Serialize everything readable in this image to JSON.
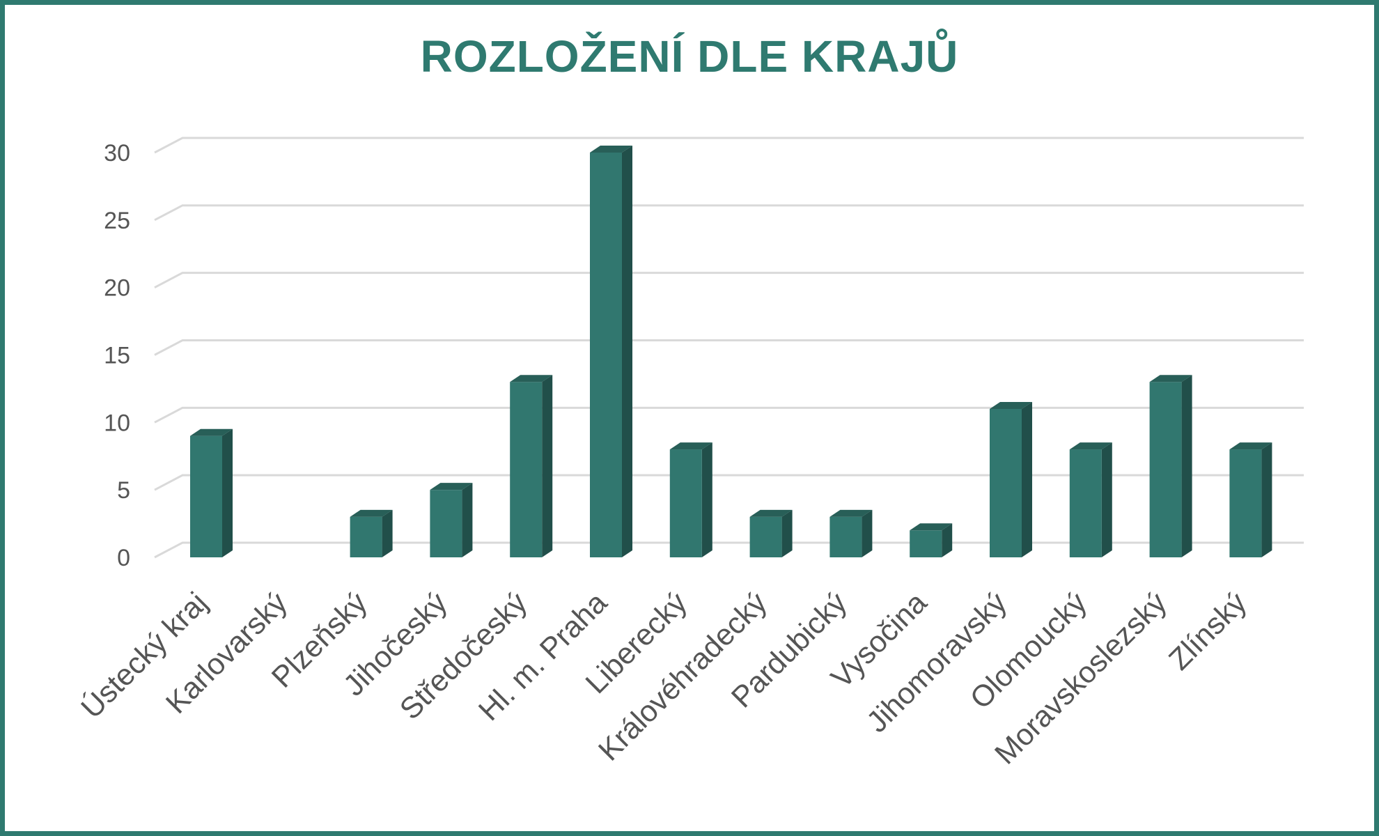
{
  "chart_data": {
    "type": "bar",
    "title": "ROZLOŽENÍ DLE KRAJŮ",
    "xlabel": "",
    "ylabel": "",
    "categories": [
      "Ústecký kraj",
      "Karlovarský",
      "Plzeňský",
      "Jihočeský",
      "Středočeský",
      "Hl. m. Praha",
      "Liberecký",
      "Královéhradecký",
      "Pardubický",
      "Vysočina",
      "Jihomoravský",
      "Olomoucký",
      "Moravskoslezský",
      "Zlínský"
    ],
    "values": [
      9,
      0,
      3,
      5,
      13,
      30,
      8,
      3,
      3,
      2,
      11,
      8,
      13,
      8
    ],
    "ylim": [
      0,
      30
    ],
    "yticks": [
      0,
      5,
      10,
      15,
      20,
      25,
      30
    ],
    "grid": true,
    "legend": "none",
    "bar_style": "3d-column"
  },
  "colors": {
    "bar_front": "#31776f",
    "bar_side": "#214f4a",
    "bar_top": "#285f58",
    "title": "#2f7a70",
    "grid": "#d9d9d9",
    "text": "#555555",
    "frame": "#2f7a70"
  }
}
